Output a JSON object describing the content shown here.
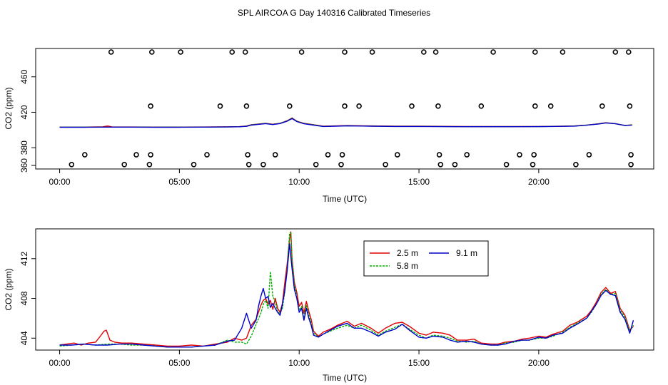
{
  "title": "SPL AIRCOA G  Day 140316  Calibrated Timeseries",
  "colors": {
    "frame": "#000000",
    "red": "#e00000",
    "green": "#00b000",
    "blue": "#0000cc"
  },
  "chart_data": [
    {
      "type": "line",
      "xlabel": "Time (UTC)",
      "ylabel": "CO2 (ppm)",
      "xlim": [
        -1,
        24.8
      ],
      "ylim": [
        356,
        492
      ],
      "xticks": [
        0,
        5,
        10,
        15,
        20
      ],
      "xtick_labels": [
        "00:00",
        "05:00",
        "10:00",
        "15:00",
        "20:00"
      ],
      "yticks": [
        380,
        420,
        460,
        360
      ],
      "ytick_labels": [
        "380",
        "420",
        "460",
        "360"
      ],
      "grid": false,
      "series": [
        {
          "color": "red",
          "x": [
            0,
            1,
            1.8,
            2,
            2.2,
            3,
            4,
            5,
            6,
            7,
            7.5,
            7.8,
            8,
            8.3,
            8.6,
            8.9,
            9.2,
            9.5,
            9.7,
            9.9,
            10.2,
            10.6,
            11,
            11.5,
            12,
            13,
            14,
            15,
            16,
            17,
            18,
            19,
            20,
            21,
            21.5,
            22,
            22.5,
            22.8,
            23.2,
            23.6,
            23.9
          ],
          "y": [
            403.2,
            403.2,
            403.6,
            404.5,
            403.4,
            403.4,
            403.3,
            403.3,
            403.4,
            403.6,
            403.8,
            404.5,
            406,
            406.8,
            407.5,
            406.5,
            407.6,
            410.5,
            413.5,
            410,
            407.5,
            406,
            404.3,
            404.6,
            405,
            404.6,
            404.3,
            404.3,
            404.1,
            403.9,
            403.9,
            403.9,
            404,
            404.3,
            404.6,
            405.6,
            407,
            408.2,
            407.2,
            405.2,
            405.8
          ]
        },
        {
          "color": "green",
          "x": [
            0,
            1,
            2,
            3,
            4,
            5,
            6,
            7,
            7.5,
            7.8,
            8,
            8.3,
            8.6,
            8.9,
            9.2,
            9.5,
            9.7,
            9.9,
            10.2,
            10.6,
            11,
            11.5,
            12,
            13,
            14,
            15,
            16,
            17,
            18,
            19,
            20,
            21,
            21.5,
            22,
            22.5,
            22.8,
            23.2,
            23.6,
            23.9
          ],
          "y": [
            403.2,
            403.2,
            403.3,
            403.3,
            403.2,
            403.2,
            403.3,
            403.5,
            403.7,
            404.2,
            405.8,
            406.6,
            407.4,
            406.3,
            407.5,
            410.3,
            413.3,
            409.8,
            407.3,
            405.8,
            404.1,
            404.4,
            404.8,
            404.4,
            404.1,
            404.1,
            403.9,
            403.8,
            403.8,
            403.8,
            403.9,
            404.2,
            404.5,
            405.5,
            406.9,
            408.1,
            407.1,
            405.1,
            405.7
          ]
        },
        {
          "color": "blue",
          "x": [
            0,
            1,
            2,
            3,
            4,
            5,
            6,
            7,
            7.5,
            7.8,
            8,
            8.3,
            8.6,
            8.9,
            9.2,
            9.5,
            9.7,
            9.9,
            10.2,
            10.6,
            11,
            11.5,
            12,
            13,
            14,
            15,
            16,
            17,
            18,
            19,
            20,
            21,
            21.5,
            22,
            22.5,
            22.8,
            23.2,
            23.6,
            23.9
          ],
          "y": [
            403.1,
            403.1,
            403.2,
            403.2,
            403.1,
            403.1,
            403.2,
            403.4,
            403.6,
            404.1,
            405.5,
            406.4,
            407.2,
            406.1,
            407.3,
            410,
            413,
            409.5,
            407,
            405.5,
            404,
            404.3,
            404.7,
            404.3,
            404,
            404,
            403.8,
            403.7,
            403.7,
            403.7,
            403.8,
            404.1,
            404.4,
            405.4,
            406.8,
            408,
            407,
            405,
            405.6
          ]
        }
      ],
      "points": {
        "x": [
          0.5,
          1.05,
          2.15,
          2.7,
          3.2,
          3.75,
          3.8,
          3.8,
          3.85,
          5.05,
          5.6,
          6.15,
          6.7,
          7.2,
          7.75,
          7.8,
          7.85,
          7.9,
          8.5,
          9.0,
          9.6,
          10.1,
          10.7,
          11.2,
          11.75,
          11.8,
          11.9,
          11.9,
          12.5,
          13.05,
          13.6,
          14.1,
          14.7,
          15.2,
          15.7,
          15.8,
          15.85,
          15.9,
          16.5,
          17.0,
          17.6,
          18.1,
          18.65,
          19.2,
          19.75,
          19.8,
          19.85,
          19.85,
          20.5,
          21.0,
          21.55,
          22.1,
          22.65,
          23.2,
          23.75,
          23.8,
          23.85,
          23.85
        ],
        "y": [
          361,
          372,
          488,
          361,
          372,
          361,
          372,
          427,
          488,
          488,
          361,
          372,
          427,
          488,
          488,
          427,
          372,
          361,
          361,
          372,
          427,
          488,
          361,
          372,
          361,
          372,
          427,
          488,
          427,
          488,
          361,
          372,
          427,
          488,
          488,
          427,
          372,
          361,
          361,
          372,
          427,
          488,
          361,
          372,
          361,
          372,
          427,
          488,
          427,
          488,
          361,
          372,
          427,
          488,
          488,
          427,
          372,
          361
        ]
      }
    },
    {
      "type": "line",
      "xlabel": "Time (UTC)",
      "ylabel": "CO2 (ppm)",
      "xlim": [
        -1,
        24.8
      ],
      "ylim": [
        402.8,
        415
      ],
      "xticks": [
        0,
        5,
        10,
        15,
        20
      ],
      "xtick_labels": [
        "00:00",
        "05:00",
        "10:00",
        "15:00",
        "20:00"
      ],
      "yticks": [
        404,
        408,
        412
      ],
      "ytick_labels": [
        "404",
        "408",
        "412"
      ],
      "grid": false,
      "legend": {
        "placement": "top-center",
        "entries": [
          {
            "name": "2.5 m",
            "color": "red"
          },
          {
            "name": "9.1 m",
            "color": "blue"
          },
          {
            "name": "5.8 m",
            "color": "green"
          }
        ]
      },
      "series": [
        {
          "name": "2.5 m",
          "color": "red",
          "x": [
            0,
            0.3,
            0.6,
            0.9,
            1.2,
            1.5,
            1.7,
            1.85,
            1.95,
            2.1,
            2.3,
            2.6,
            3,
            3.5,
            4,
            4.5,
            5,
            5.5,
            6,
            6.5,
            7,
            7.3,
            7.6,
            7.8,
            8,
            8.2,
            8.4,
            8.5,
            8.6,
            8.7,
            8.8,
            8.9,
            9.0,
            9.1,
            9.2,
            9.3,
            9.4,
            9.5,
            9.6,
            9.65,
            9.7,
            9.8,
            9.9,
            10.0,
            10.1,
            10.2,
            10.3,
            10.4,
            10.5,
            10.6,
            10.8,
            11,
            11.3,
            11.6,
            12,
            12.3,
            12.6,
            13,
            13.3,
            13.6,
            14,
            14.3,
            14.6,
            15,
            15.3,
            15.6,
            16,
            16.3,
            16.6,
            17,
            17.3,
            17.6,
            18,
            18.3,
            18.6,
            19,
            19.3,
            19.6,
            20,
            20.3,
            20.6,
            21,
            21.3,
            21.6,
            22,
            22.2,
            22.4,
            22.6,
            22.8,
            23,
            23.2,
            23.4,
            23.6,
            23.8,
            23.95
          ],
          "y": [
            403.3,
            403.4,
            403.5,
            403.3,
            403.5,
            403.6,
            404.2,
            404.7,
            404.8,
            403.8,
            403.6,
            403.5,
            403.5,
            403.4,
            403.3,
            403.2,
            403.2,
            403.3,
            403.2,
            403.4,
            403.6,
            404.0,
            403.8,
            404.0,
            405.3,
            405.9,
            407.3,
            407.8,
            408.0,
            407.4,
            407.8,
            406.9,
            408.0,
            407.0,
            406.6,
            407.5,
            409.6,
            411.5,
            414.0,
            414.7,
            412.0,
            409.6,
            408.6,
            407.2,
            407.6,
            406.5,
            407.7,
            406.7,
            405.9,
            404.7,
            404.2,
            404.6,
            404.9,
            405.3,
            405.7,
            405.2,
            405.5,
            405.0,
            404.5,
            405.0,
            405.5,
            405.6,
            405.2,
            404.5,
            404.3,
            404.6,
            404.5,
            404.3,
            403.8,
            403.8,
            403.9,
            403.5,
            403.4,
            403.4,
            403.6,
            403.7,
            403.9,
            404.0,
            404.2,
            404.1,
            404.4,
            404.7,
            405.3,
            405.6,
            406.2,
            406.8,
            407.6,
            408.6,
            409.1,
            408.5,
            408.7,
            407.0,
            406.3,
            404.8,
            405.2
          ]
        },
        {
          "name": "5.8 m",
          "color": "green",
          "x": [
            0,
            0.5,
            1,
            1.5,
            2,
            2.5,
            3,
            3.5,
            4,
            4.5,
            5,
            5.5,
            6,
            6.5,
            7,
            7.3,
            7.6,
            7.8,
            8,
            8.2,
            8.4,
            8.5,
            8.6,
            8.7,
            8.8,
            8.9,
            9.0,
            9.1,
            9.2,
            9.3,
            9.4,
            9.5,
            9.6,
            9.65,
            9.7,
            9.8,
            9.9,
            10.0,
            10.1,
            10.2,
            10.3,
            10.4,
            10.5,
            10.6,
            10.8,
            11,
            11.3,
            11.6,
            12,
            12.3,
            12.6,
            13,
            13.3,
            13.6,
            14,
            14.3,
            14.6,
            15,
            15.3,
            15.6,
            16,
            16.3,
            16.6,
            17,
            17.3,
            17.6,
            18,
            18.3,
            18.6,
            19,
            19.3,
            19.6,
            20,
            20.3,
            20.6,
            21,
            21.3,
            21.6,
            22,
            22.2,
            22.4,
            22.6,
            22.8,
            23,
            23.2,
            23.4,
            23.6,
            23.8,
            23.95
          ],
          "y": [
            403.2,
            403.3,
            403.4,
            403.3,
            403.4,
            403.4,
            403.3,
            403.3,
            403.2,
            403.1,
            403.1,
            403.1,
            403.2,
            403.3,
            403.8,
            403.6,
            403.6,
            403.4,
            404.2,
            405.4,
            406.5,
            407.4,
            407.8,
            407.0,
            410.7,
            408.2,
            407.7,
            406.6,
            406.5,
            407.0,
            408.7,
            411.0,
            414.6,
            414.6,
            411.8,
            409.4,
            408.1,
            406.8,
            407.2,
            406.0,
            407.3,
            406.3,
            405.5,
            404.5,
            404.1,
            404.4,
            404.7,
            405.0,
            405.3,
            405.0,
            405.3,
            404.8,
            404.3,
            404.7,
            405.1,
            405.4,
            404.9,
            404.3,
            404.0,
            404.3,
            404.2,
            404.0,
            403.7,
            403.6,
            403.7,
            403.4,
            403.3,
            403.3,
            403.5,
            403.6,
            403.8,
            403.8,
            404.0,
            404.0,
            404.2,
            404.6,
            405.1,
            405.5,
            406.0,
            406.6,
            407.4,
            408.4,
            408.9,
            408.4,
            408.5,
            406.8,
            406.1,
            404.7,
            405.3
          ]
        },
        {
          "name": "9.1 m",
          "color": "blue",
          "x": [
            0,
            0.5,
            1,
            1.5,
            2,
            2.5,
            3,
            3.5,
            4,
            4.5,
            5,
            5.5,
            6,
            6.5,
            7,
            7.3,
            7.6,
            7.8,
            8,
            8.2,
            8.3,
            8.4,
            8.5,
            8.6,
            8.7,
            8.8,
            8.9,
            9.0,
            9.1,
            9.2,
            9.3,
            9.4,
            9.5,
            9.6,
            9.7,
            9.8,
            9.9,
            10.0,
            10.1,
            10.2,
            10.3,
            10.4,
            10.5,
            10.6,
            10.8,
            11,
            11.3,
            11.6,
            12,
            12.3,
            12.6,
            13,
            13.3,
            13.6,
            14,
            14.3,
            14.6,
            15,
            15.3,
            15.6,
            16,
            16.3,
            16.6,
            17,
            17.3,
            17.6,
            18,
            18.3,
            18.6,
            19,
            19.3,
            19.6,
            20,
            20.3,
            20.6,
            21,
            21.3,
            21.6,
            22,
            22.2,
            22.4,
            22.6,
            22.8,
            23,
            23.2,
            23.4,
            23.6,
            23.8,
            23.95
          ],
          "y": [
            403.3,
            403.3,
            403.4,
            403.3,
            403.3,
            403.4,
            403.4,
            403.3,
            403.2,
            403.1,
            403.1,
            403.1,
            403.2,
            403.3,
            403.7,
            403.8,
            405.0,
            406.5,
            405.0,
            405.8,
            407.2,
            408.2,
            409.0,
            408.0,
            408.2,
            407.1,
            407.5,
            407.0,
            406.6,
            406.3,
            407.4,
            408.8,
            410.8,
            413.5,
            411.0,
            408.9,
            408.0,
            406.6,
            407.0,
            405.8,
            407.0,
            406.0,
            405.3,
            404.3,
            404.1,
            404.4,
            404.8,
            405.2,
            405.5,
            405.0,
            405.0,
            404.6,
            404.2,
            404.6,
            404.9,
            405.4,
            404.8,
            404.1,
            404.0,
            404.2,
            404.1,
            403.8,
            403.6,
            403.7,
            403.6,
            403.4,
            403.3,
            403.3,
            403.4,
            403.7,
            403.8,
            403.8,
            404.1,
            404.0,
            404.3,
            404.5,
            405.0,
            405.4,
            406.0,
            406.7,
            407.4,
            408.3,
            408.8,
            408.4,
            408.3,
            406.6,
            405.9,
            404.5,
            405.8
          ]
        }
      ]
    }
  ]
}
